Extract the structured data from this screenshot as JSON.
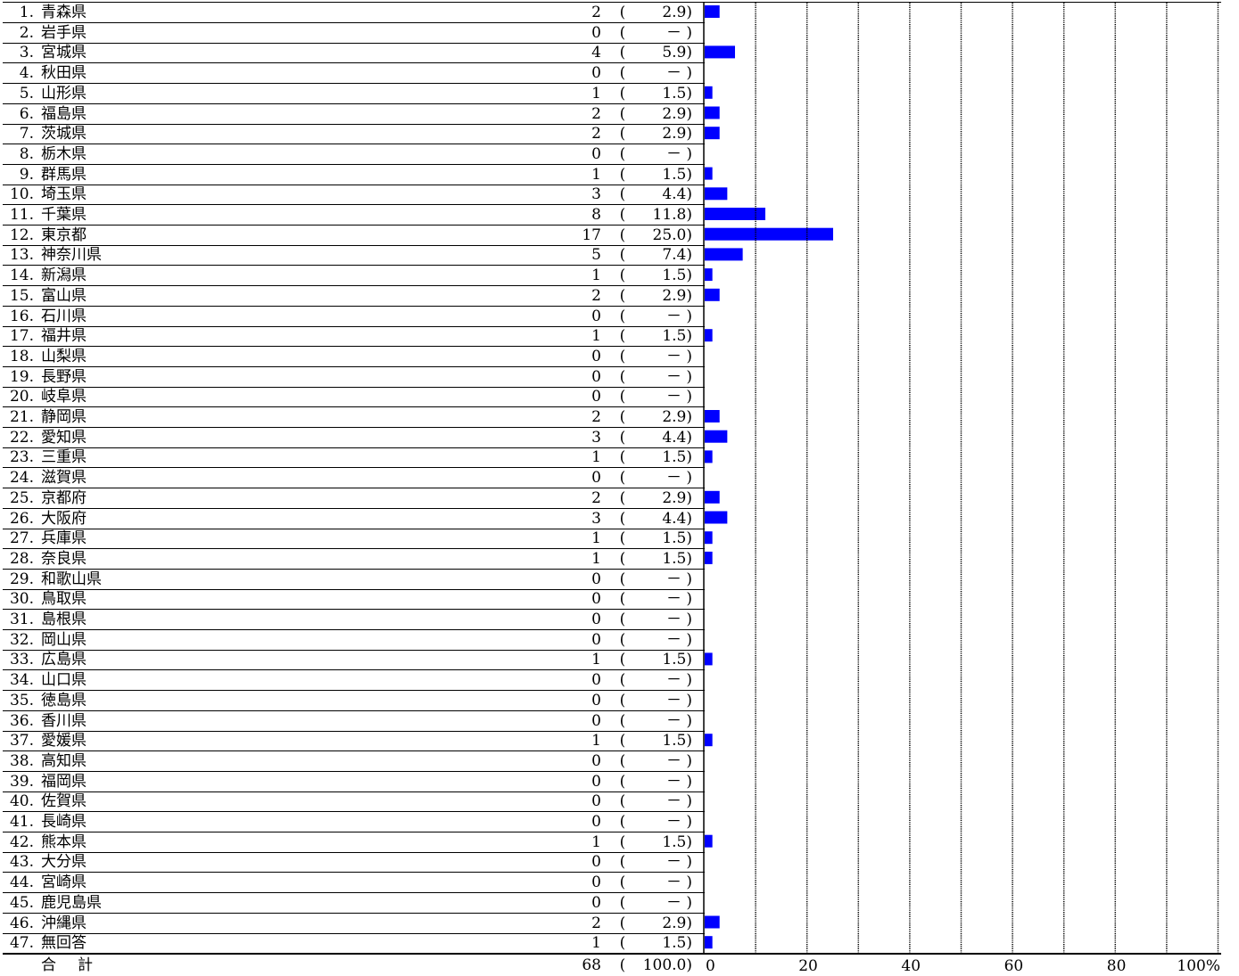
{
  "chart_data": {
    "type": "bar",
    "orientation": "horizontal",
    "categories": [
      "1.",
      "2.",
      "3.",
      "4.",
      "5.",
      "6.",
      "7.",
      "8.",
      "9.",
      "10.",
      "11.",
      "12.",
      "13.",
      "14.",
      "15.",
      "16.",
      "17.",
      "18.",
      "19.",
      "20.",
      "21.",
      "22.",
      "23.",
      "24.",
      "25.",
      "26.",
      "27.",
      "28.",
      "29.",
      "30.",
      "31.",
      "32.",
      "33.",
      "34.",
      "35.",
      "36.",
      "37.",
      "38.",
      "39.",
      "40.",
      "41.",
      "42.",
      "43.",
      "44.",
      "45.",
      "46.",
      "47."
    ],
    "rows": [
      {
        "num": "1.",
        "name": "青森県",
        "count": "2",
        "pct_label": "2.9)",
        "value": 2.9
      },
      {
        "num": "2.",
        "name": "岩手県",
        "count": "0",
        "pct_label": "－ )",
        "value": 0
      },
      {
        "num": "3.",
        "name": "宮城県",
        "count": "4",
        "pct_label": "5.9)",
        "value": 5.9
      },
      {
        "num": "4.",
        "name": "秋田県",
        "count": "0",
        "pct_label": "－ )",
        "value": 0
      },
      {
        "num": "5.",
        "name": "山形県",
        "count": "1",
        "pct_label": "1.5)",
        "value": 1.5
      },
      {
        "num": "6.",
        "name": "福島県",
        "count": "2",
        "pct_label": "2.9)",
        "value": 2.9
      },
      {
        "num": "7.",
        "name": "茨城県",
        "count": "2",
        "pct_label": "2.9)",
        "value": 2.9
      },
      {
        "num": "8.",
        "name": "栃木県",
        "count": "0",
        "pct_label": "－ )",
        "value": 0
      },
      {
        "num": "9.",
        "name": "群馬県",
        "count": "1",
        "pct_label": "1.5)",
        "value": 1.5
      },
      {
        "num": "10.",
        "name": "埼玉県",
        "count": "3",
        "pct_label": "4.4)",
        "value": 4.4
      },
      {
        "num": "11.",
        "name": "千葉県",
        "count": "8",
        "pct_label": "11.8)",
        "value": 11.8
      },
      {
        "num": "12.",
        "name": "東京都",
        "count": "17",
        "pct_label": "25.0)",
        "value": 25.0
      },
      {
        "num": "13.",
        "name": "神奈川県",
        "count": "5",
        "pct_label": "7.4)",
        "value": 7.4
      },
      {
        "num": "14.",
        "name": "新潟県",
        "count": "1",
        "pct_label": "1.5)",
        "value": 1.5
      },
      {
        "num": "15.",
        "name": "富山県",
        "count": "2",
        "pct_label": "2.9)",
        "value": 2.9
      },
      {
        "num": "16.",
        "name": "石川県",
        "count": "0",
        "pct_label": "－ )",
        "value": 0
      },
      {
        "num": "17.",
        "name": "福井県",
        "count": "1",
        "pct_label": "1.5)",
        "value": 1.5
      },
      {
        "num": "18.",
        "name": "山梨県",
        "count": "0",
        "pct_label": "－ )",
        "value": 0
      },
      {
        "num": "19.",
        "name": "長野県",
        "count": "0",
        "pct_label": "－ )",
        "value": 0
      },
      {
        "num": "20.",
        "name": "岐阜県",
        "count": "0",
        "pct_label": "－ )",
        "value": 0
      },
      {
        "num": "21.",
        "name": "静岡県",
        "count": "2",
        "pct_label": "2.9)",
        "value": 2.9
      },
      {
        "num": "22.",
        "name": "愛知県",
        "count": "3",
        "pct_label": "4.4)",
        "value": 4.4
      },
      {
        "num": "23.",
        "name": "三重県",
        "count": "1",
        "pct_label": "1.5)",
        "value": 1.5
      },
      {
        "num": "24.",
        "name": "滋賀県",
        "count": "0",
        "pct_label": "－ )",
        "value": 0
      },
      {
        "num": "25.",
        "name": "京都府",
        "count": "2",
        "pct_label": "2.9)",
        "value": 2.9
      },
      {
        "num": "26.",
        "name": "大阪府",
        "count": "3",
        "pct_label": "4.4)",
        "value": 4.4
      },
      {
        "num": "27.",
        "name": "兵庫県",
        "count": "1",
        "pct_label": "1.5)",
        "value": 1.5
      },
      {
        "num": "28.",
        "name": "奈良県",
        "count": "1",
        "pct_label": "1.5)",
        "value": 1.5
      },
      {
        "num": "29.",
        "name": "和歌山県",
        "count": "0",
        "pct_label": "－ )",
        "value": 0
      },
      {
        "num": "30.",
        "name": "鳥取県",
        "count": "0",
        "pct_label": "－ )",
        "value": 0
      },
      {
        "num": "31.",
        "name": "島根県",
        "count": "0",
        "pct_label": "－ )",
        "value": 0
      },
      {
        "num": "32.",
        "name": "岡山県",
        "count": "0",
        "pct_label": "－ )",
        "value": 0
      },
      {
        "num": "33.",
        "name": "広島県",
        "count": "1",
        "pct_label": "1.5)",
        "value": 1.5
      },
      {
        "num": "34.",
        "name": "山口県",
        "count": "0",
        "pct_label": "－ )",
        "value": 0
      },
      {
        "num": "35.",
        "name": "徳島県",
        "count": "0",
        "pct_label": "－ )",
        "value": 0
      },
      {
        "num": "36.",
        "name": "香川県",
        "count": "0",
        "pct_label": "－ )",
        "value": 0
      },
      {
        "num": "37.",
        "name": "愛媛県",
        "count": "1",
        "pct_label": "1.5)",
        "value": 1.5
      },
      {
        "num": "38.",
        "name": "高知県",
        "count": "0",
        "pct_label": "－ )",
        "value": 0
      },
      {
        "num": "39.",
        "name": "福岡県",
        "count": "0",
        "pct_label": "－ )",
        "value": 0
      },
      {
        "num": "40.",
        "name": "佐賀県",
        "count": "0",
        "pct_label": "－ )",
        "value": 0
      },
      {
        "num": "41.",
        "name": "長崎県",
        "count": "0",
        "pct_label": "－ )",
        "value": 0
      },
      {
        "num": "42.",
        "name": "熊本県",
        "count": "1",
        "pct_label": "1.5)",
        "value": 1.5
      },
      {
        "num": "43.",
        "name": "大分県",
        "count": "0",
        "pct_label": "－ )",
        "value": 0
      },
      {
        "num": "44.",
        "name": "宮崎県",
        "count": "0",
        "pct_label": "－ )",
        "value": 0
      },
      {
        "num": "45.",
        "name": "鹿児島県",
        "count": "0",
        "pct_label": "－ )",
        "value": 0
      },
      {
        "num": "46.",
        "name": "沖縄県",
        "count": "2",
        "pct_label": "2.9)",
        "value": 2.9
      },
      {
        "num": "47.",
        "name": "無回答",
        "count": "1",
        "pct_label": "1.5)",
        "value": 1.5
      }
    ],
    "paren_open": "(",
    "total": {
      "label": "合計",
      "count": "68",
      "pct_label": "100.0)"
    },
    "xlim": [
      0,
      100
    ],
    "x_ticks": [
      0,
      20,
      40,
      60,
      80,
      100
    ],
    "x_tick_labels": [
      "0",
      "20",
      "40",
      "60",
      "80",
      "100%"
    ],
    "grid_step": 10,
    "grid": true,
    "bar_color": "#0000ff",
    "title": "",
    "xlabel": "",
    "ylabel": ""
  }
}
